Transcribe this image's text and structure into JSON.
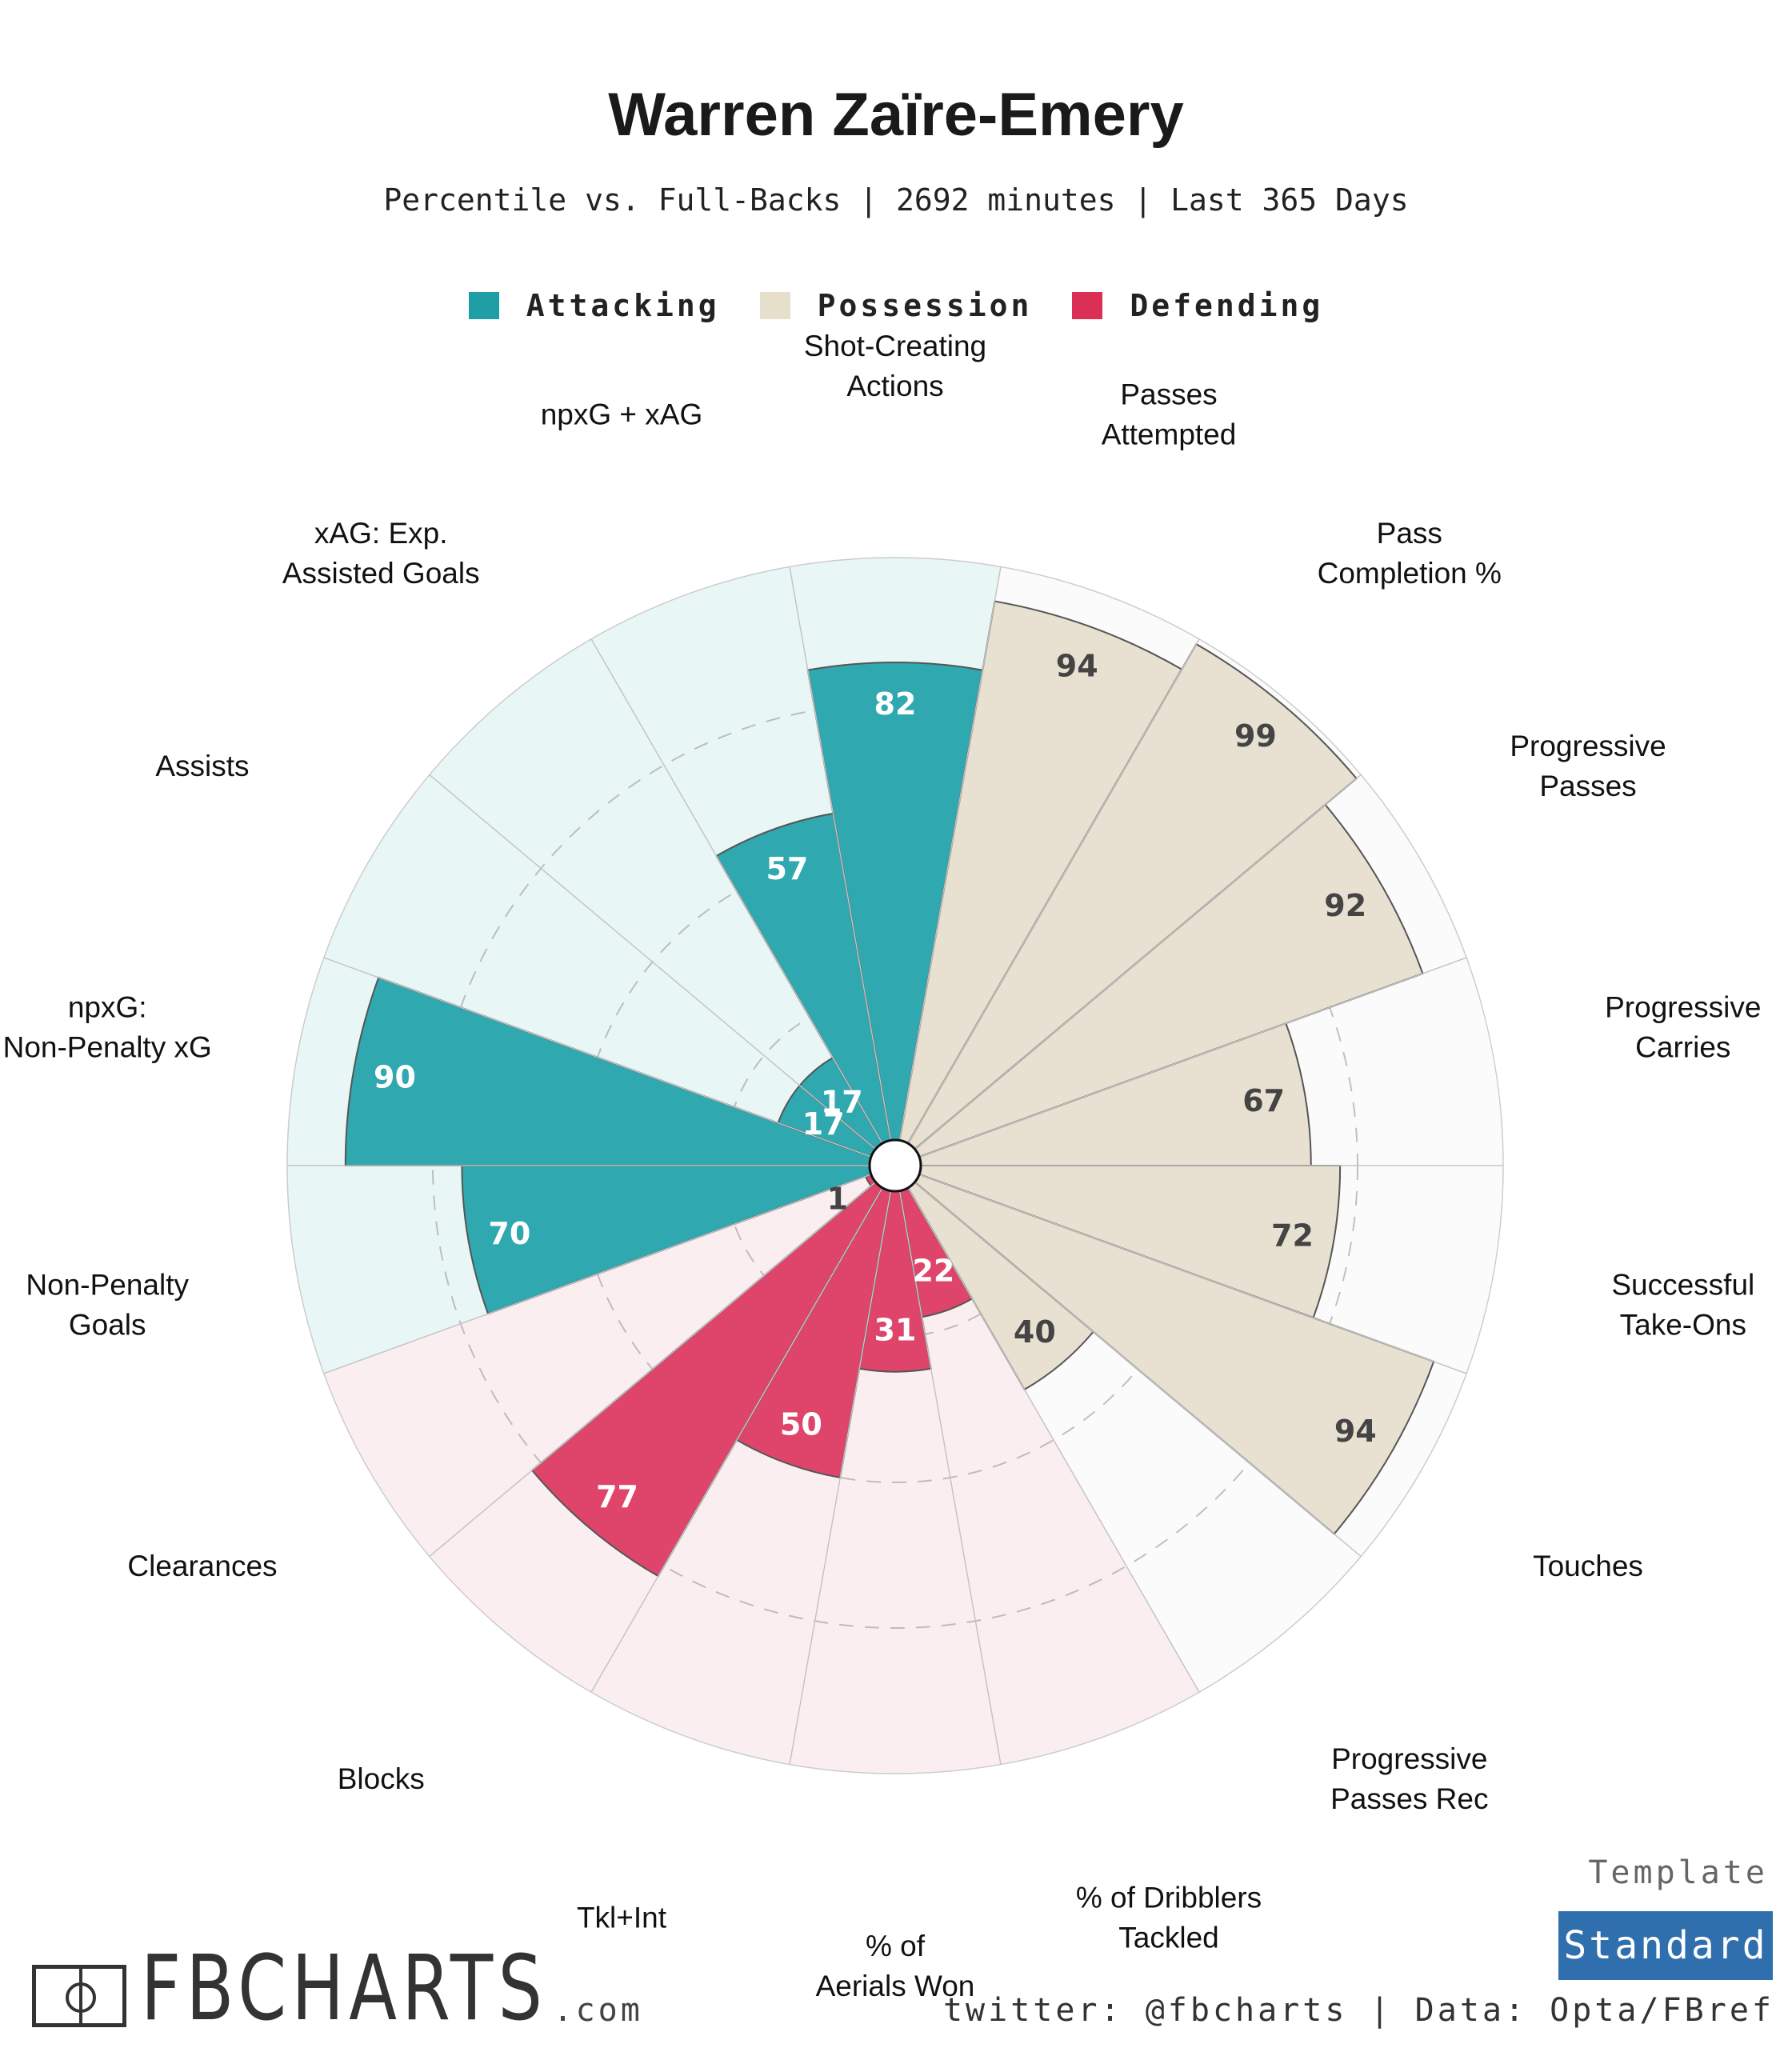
{
  "title": "Warren Zaïre-Emery",
  "subtitle": "Percentile vs. Full-Backs | 2692 minutes | Last 365 Days",
  "legend": [
    {
      "label": "Attacking",
      "color": "#1f9ea6"
    },
    {
      "label": "Possession",
      "color": "#e6dfcc"
    },
    {
      "label": "Defending",
      "color": "#dc2f55"
    }
  ],
  "chart_data": {
    "type": "polar-bar",
    "rlim": [
      0,
      100
    ],
    "grid": true,
    "categories": [
      {
        "label": "Shot-Creating Actions",
        "group": "Attacking",
        "value": 82
      },
      {
        "label": "Passes Attempted",
        "group": "Possession",
        "value": 94
      },
      {
        "label": "Pass Completion %",
        "group": "Possession",
        "value": 99
      },
      {
        "label": "Progressive Passes",
        "group": "Possession",
        "value": 92
      },
      {
        "label": "Progressive Carries",
        "group": "Possession",
        "value": 67
      },
      {
        "label": "Successful Take-Ons",
        "group": "Possession",
        "value": 72
      },
      {
        "label": "Touches",
        "group": "Possession",
        "value": 94
      },
      {
        "label": "Progressive Passes Rec",
        "group": "Possession",
        "value": 40
      },
      {
        "label": "% of Dribblers Tackled",
        "group": "Defending",
        "value": 22
      },
      {
        "label": "% of Aerials Won",
        "group": "Defending",
        "value": 31
      },
      {
        "label": "Tkl+Int",
        "group": "Defending",
        "value": 50
      },
      {
        "label": "Blocks",
        "group": "Defending",
        "value": 77
      },
      {
        "label": "Clearances",
        "group": "Defending",
        "value": 1
      },
      {
        "label": "Non-Penalty Goals",
        "group": "Attacking",
        "value": 70
      },
      {
        "label": "npxG: Non-Penalty xG",
        "group": "Attacking",
        "value": 90
      },
      {
        "label": "Assists",
        "group": "Attacking",
        "value": 17
      },
      {
        "label": "xAG: Exp. Assisted Goals",
        "group": "Attacking",
        "value": 17
      },
      {
        "label": "npxG + xAG",
        "group": "Attacking",
        "value": 57
      }
    ],
    "group_colors": {
      "Attacking": {
        "bar": "#2fa8b0",
        "background": "#e9f6f6",
        "text": "#ffffff"
      },
      "Possession": {
        "bar": "#e8e1d1",
        "background": "#fbfbfb",
        "text": "#444444"
      },
      "Defending": {
        "bar": "#df456a",
        "background": "#fbeef1",
        "text": "#ffffff"
      }
    }
  },
  "footer": {
    "brand": "FBCHARTS",
    "brand_suffix": ".com",
    "template_label": "Template",
    "template_value": "Standard",
    "credit": "twitter: @fbcharts | Data: Opta/FBref"
  }
}
